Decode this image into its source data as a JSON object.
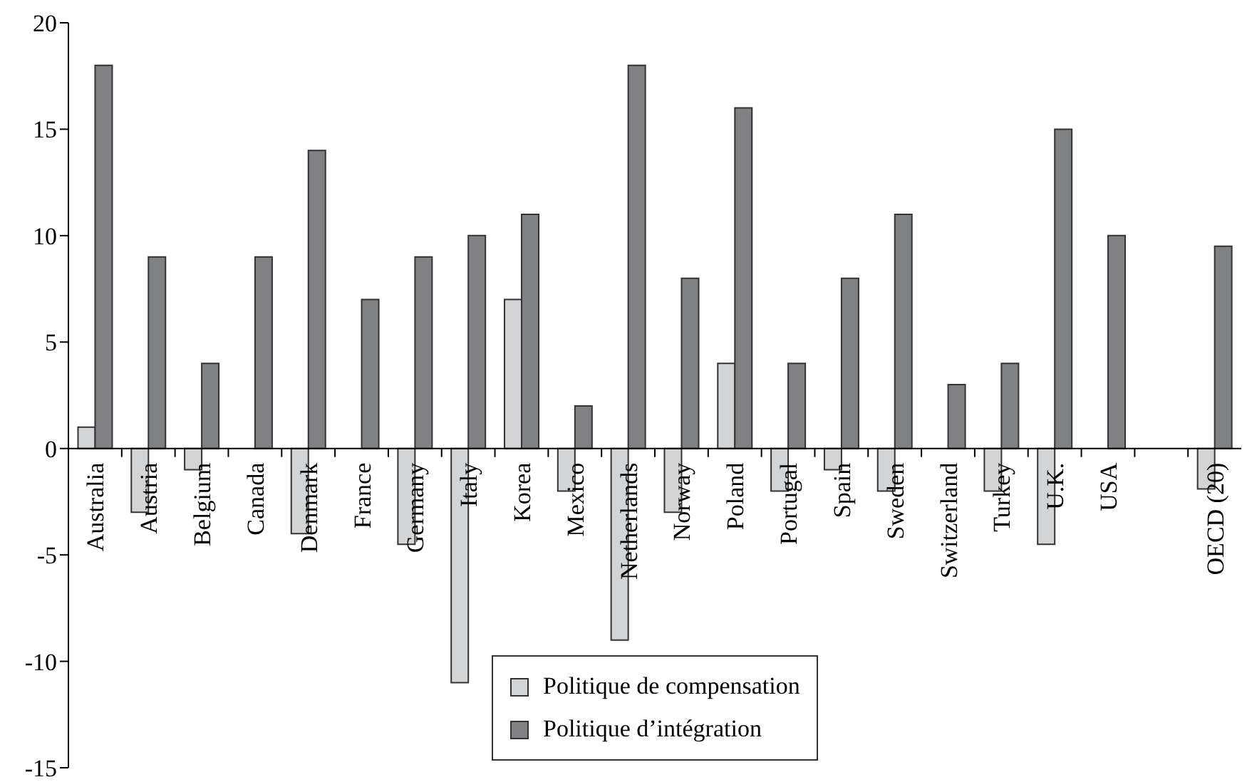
{
  "chart_data": {
    "type": "bar",
    "categories": [
      "Australia",
      "Austria",
      "Belgium",
      "Canada",
      "Denmark",
      "France",
      "Germany",
      "Italy",
      "Korea",
      "Mexico",
      "Netherlands",
      "Norway",
      "Poland",
      "Portugal",
      "Spain",
      "Sweden",
      "Switzerland",
      "Turkey",
      "U.K.",
      "USA",
      null,
      "OECD (20)"
    ],
    "series": [
      {
        "name": "Politique de compensation",
        "color": "#d3d4d6",
        "values": [
          1,
          -3,
          -1,
          null,
          -4,
          null,
          -4.5,
          -11,
          7,
          -2,
          -9,
          -3,
          4,
          -2,
          -1,
          -2,
          null,
          -2,
          -4.5,
          null,
          null,
          -1.9
        ]
      },
      {
        "name": "Politique d’intégration",
        "color": "#808185",
        "values": [
          18,
          9,
          4,
          9,
          14,
          7,
          9,
          10,
          11,
          2,
          18,
          8,
          16,
          4,
          8,
          11,
          3,
          4,
          15,
          10,
          null,
          9.5
        ]
      }
    ],
    "ylim": [
      -15,
      20
    ],
    "yticks": [
      -15,
      -10,
      -5,
      0,
      5,
      10,
      15,
      20
    ],
    "legend": "bottom"
  }
}
